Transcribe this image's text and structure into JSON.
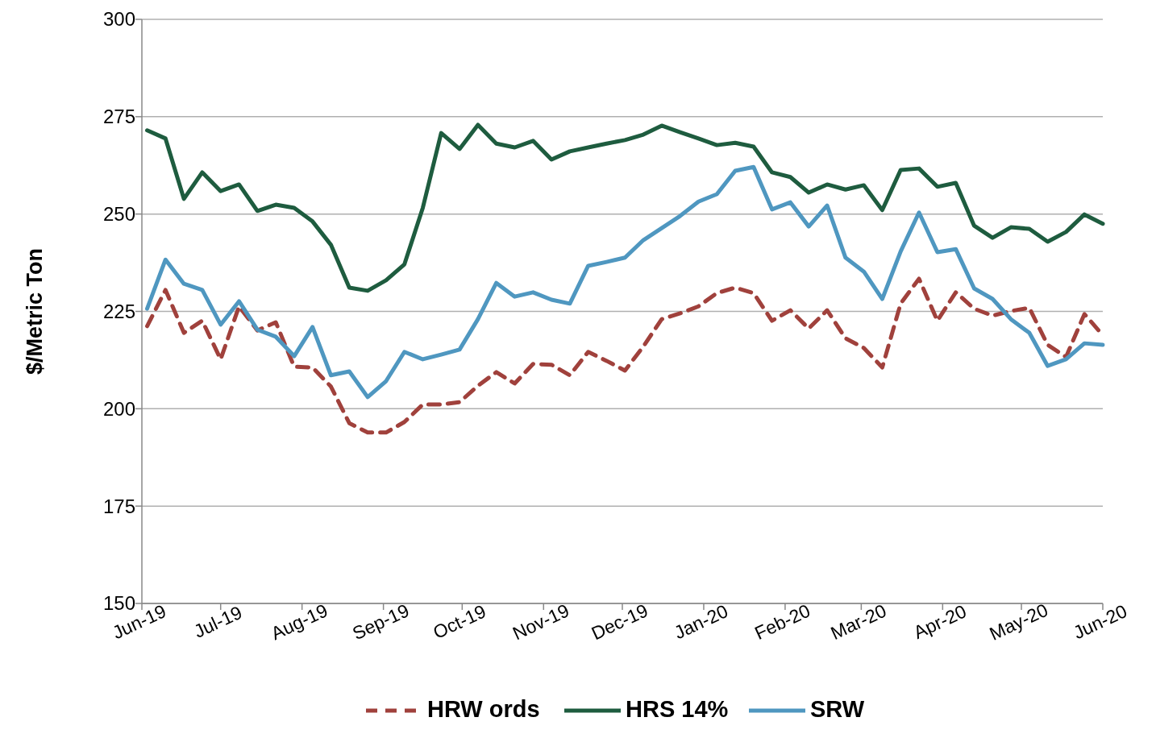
{
  "chart_data": {
    "type": "line",
    "ylabel": "$/Metric Ton",
    "x": [
      "2019-06-03",
      "2019-06-10",
      "2019-06-17",
      "2019-06-24",
      "2019-07-01",
      "2019-07-08",
      "2019-07-15",
      "2019-07-22",
      "2019-07-29",
      "2019-08-05",
      "2019-08-12",
      "2019-08-19",
      "2019-08-26",
      "2019-09-02",
      "2019-09-09",
      "2019-09-16",
      "2019-09-23",
      "2019-09-30",
      "2019-10-07",
      "2019-10-14",
      "2019-10-21",
      "2019-10-28",
      "2019-11-04",
      "2019-11-11",
      "2019-11-18",
      "2019-11-25",
      "2019-12-02",
      "2019-12-09",
      "2019-12-16",
      "2019-12-23",
      "2019-12-30",
      "2020-01-06",
      "2020-01-13",
      "2020-01-20",
      "2020-01-27",
      "2020-02-03",
      "2020-02-10",
      "2020-02-17",
      "2020-02-24",
      "2020-03-02",
      "2020-03-09",
      "2020-03-16",
      "2020-03-23",
      "2020-03-30",
      "2020-04-06",
      "2020-04-13",
      "2020-04-20",
      "2020-04-27",
      "2020-05-04",
      "2020-05-11",
      "2020-05-18",
      "2020-05-25",
      "2020-06-01"
    ],
    "series": [
      {
        "name": "HRW ords",
        "color": "#a0413c",
        "line_style": "dashed",
        "values": [
          221.2,
          230.5,
          219.5,
          222.6,
          212.7,
          226.3,
          220.1,
          222.2,
          210.8,
          210.6,
          205.7,
          196.3,
          193.9,
          193.9,
          196.6,
          201.1,
          201.1,
          201.7,
          205.9,
          209.4,
          206.5,
          211.5,
          211.3,
          208.6,
          214.6,
          212.3,
          209.8,
          216.0,
          223.0,
          224.5,
          226.3,
          229.7,
          231.1,
          229.7,
          222.6,
          225.3,
          220.6,
          225.3,
          218.1,
          215.6,
          210.6,
          227.0,
          233.4,
          222.6,
          229.9,
          225.7,
          223.9,
          225.1,
          225.9,
          216.4,
          213.3,
          224.3,
          218.9
        ]
      },
      {
        "name": "HRS 14%",
        "color": "#1e5c3f",
        "line_style": "solid",
        "values": [
          271.5,
          269.4,
          253.9,
          260.7,
          255.9,
          257.6,
          250.8,
          252.4,
          251.6,
          248.1,
          242.1,
          231.1,
          230.3,
          233.0,
          237.1,
          251.6,
          270.8,
          266.7,
          272.9,
          268.1,
          267.1,
          268.8,
          264.0,
          266.1,
          267.1,
          268.1,
          269.0,
          270.4,
          272.7,
          271.0,
          269.4,
          267.7,
          268.3,
          267.3,
          260.7,
          259.5,
          255.5,
          257.6,
          256.3,
          257.4,
          251.0,
          261.3,
          261.7,
          257.0,
          258.0,
          247.0,
          243.9,
          246.6,
          246.2,
          242.9,
          245.4,
          249.9,
          247.5
        ]
      },
      {
        "name": "SRW",
        "color": "#4f97c0",
        "line_style": "solid",
        "values": [
          225.7,
          238.3,
          232.1,
          230.5,
          221.6,
          227.6,
          220.3,
          218.5,
          213.5,
          221.0,
          208.6,
          209.6,
          203.0,
          207.1,
          214.6,
          212.7,
          213.9,
          215.2,
          223.0,
          232.3,
          228.8,
          229.9,
          228.0,
          227.0,
          236.7,
          237.7,
          238.8,
          243.3,
          246.4,
          249.5,
          253.2,
          255.1,
          261.1,
          262.1,
          251.2,
          253.0,
          246.8,
          252.2,
          238.8,
          235.2,
          228.2,
          240.4,
          250.4,
          240.2,
          241.0,
          230.9,
          228.2,
          223.0,
          219.5,
          211.0,
          212.7,
          216.8,
          216.4
        ]
      }
    ],
    "xlim": [
      "2019-06-01",
      "2020-06-01"
    ],
    "xticks": [
      {
        "value": "2019-06-01",
        "label": "Jun-19"
      },
      {
        "value": "2019-07-01",
        "label": "Jul-19"
      },
      {
        "value": "2019-08-01",
        "label": "Aug-19"
      },
      {
        "value": "2019-09-01",
        "label": "Sep-19"
      },
      {
        "value": "2019-10-01",
        "label": "Oct-19"
      },
      {
        "value": "2019-11-01",
        "label": "Nov-19"
      },
      {
        "value": "2019-12-01",
        "label": "Dec-19"
      },
      {
        "value": "2020-01-01",
        "label": "Jan-20"
      },
      {
        "value": "2020-02-01",
        "label": "Feb-20"
      },
      {
        "value": "2020-03-01",
        "label": "Mar-20"
      },
      {
        "value": "2020-04-01",
        "label": "Apr-20"
      },
      {
        "value": "2020-05-01",
        "label": "May-20"
      },
      {
        "value": "2020-06-01",
        "label": "Jun-20"
      }
    ],
    "ylim": [
      150,
      300
    ],
    "yticks": [
      150,
      175,
      200,
      225,
      250,
      275,
      300
    ],
    "grid": "y",
    "legend": "bottom",
    "marker": "none"
  }
}
